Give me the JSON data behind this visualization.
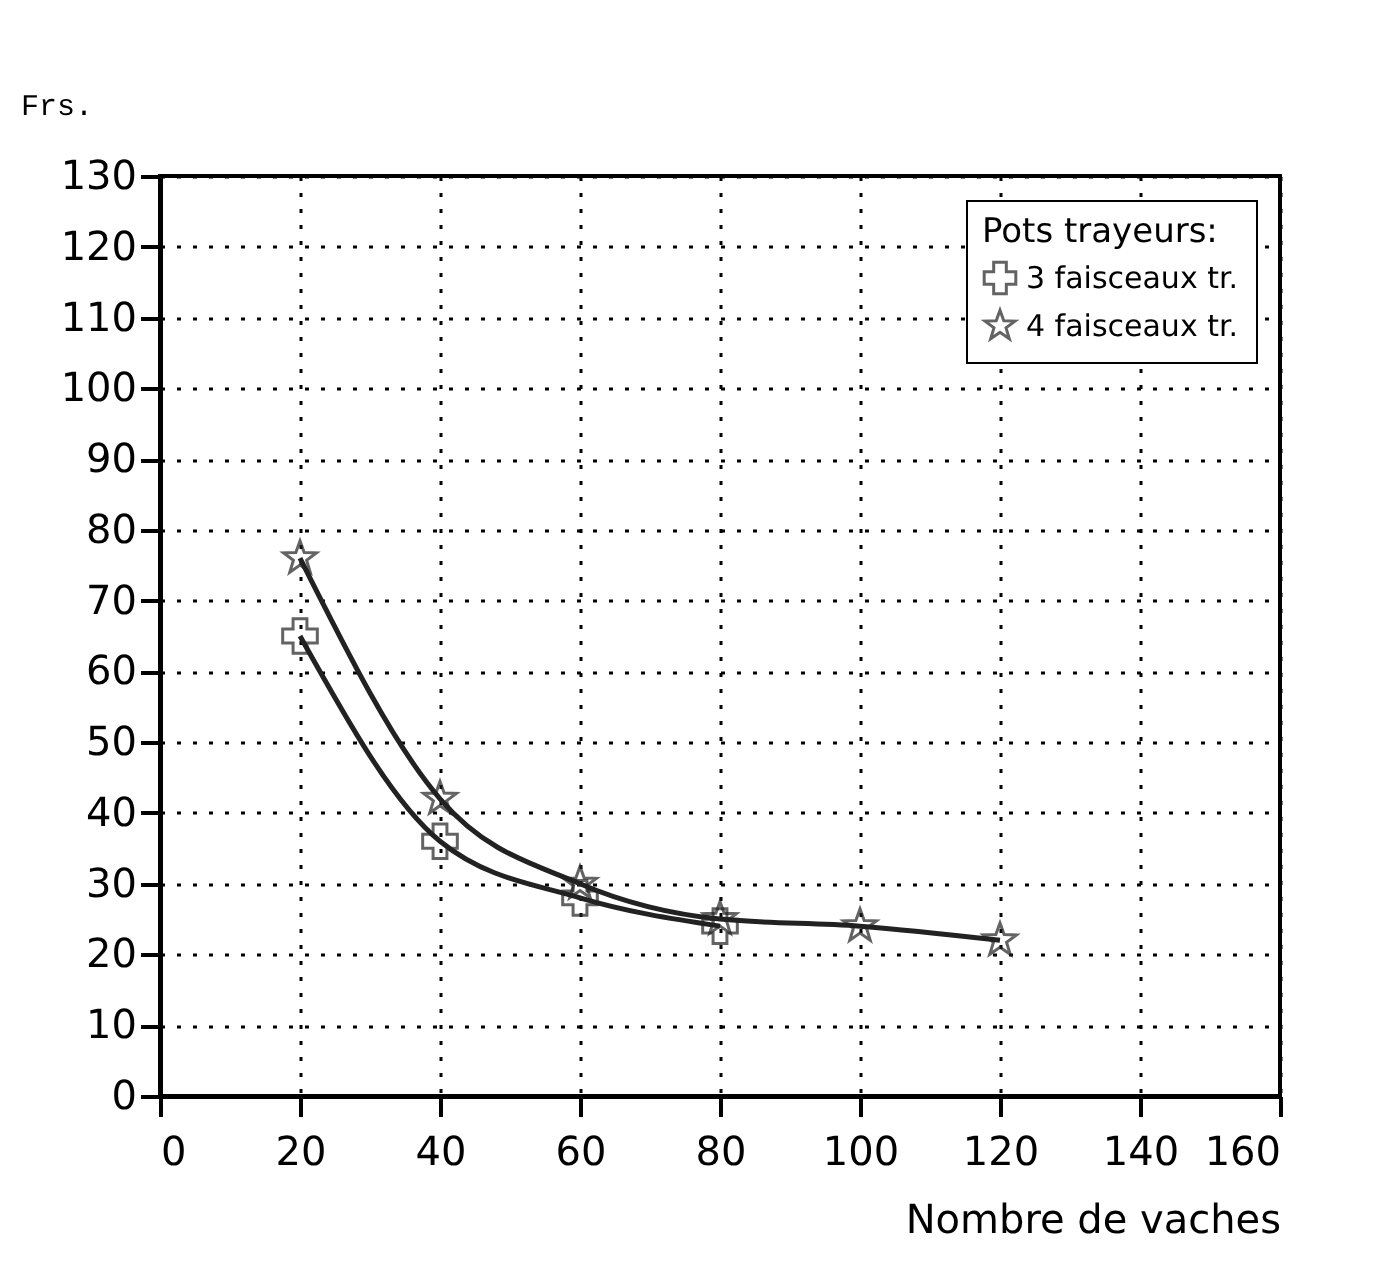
{
  "chart_data": {
    "type": "line",
    "ylabel": "Frs.",
    "xlabel": "Nombre de vaches",
    "legend_title": "Pots trayeurs:",
    "xlim": [
      0,
      160
    ],
    "xticks": [
      0,
      20,
      40,
      60,
      80,
      100,
      120,
      140,
      160
    ],
    "ylim": [
      0,
      130
    ],
    "yticks": [
      0,
      10,
      20,
      30,
      40,
      50,
      60,
      70,
      80,
      90,
      100,
      110,
      120,
      130
    ],
    "grid": true,
    "legend": "top right",
    "line_style": "solid",
    "series": [
      {
        "name": "3 faisceaux tr.",
        "color": "#222222",
        "marker": "cross",
        "x": [
          20,
          40,
          60,
          80
        ],
        "values": [
          65,
          36,
          28,
          24
        ]
      },
      {
        "name": "4 faisceaux tr.",
        "color": "#222222",
        "marker": "star",
        "x": [
          20,
          40,
          60,
          80,
          100,
          120
        ],
        "values": [
          76,
          42,
          30,
          25,
          24,
          22
        ]
      }
    ]
  }
}
